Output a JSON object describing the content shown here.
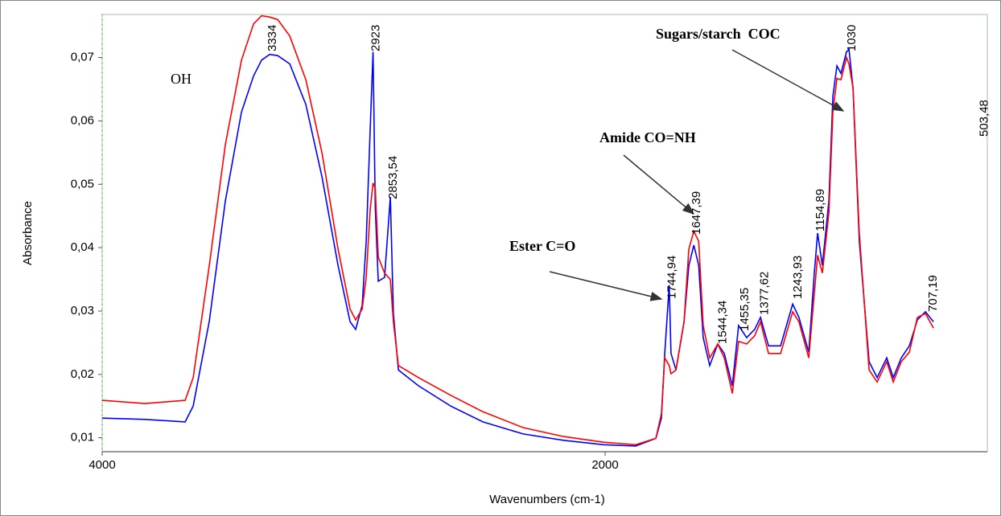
{
  "chart_data": {
    "type": "line",
    "x_label": "Wavenumbers (cm-1)",
    "y_label": "Absorbance",
    "xlim": [
      4000,
      480
    ],
    "ylim": [
      0.0078,
      0.0768
    ],
    "xticks": [
      4000,
      2000
    ],
    "yticks": [
      {
        "value": 0.01,
        "label": "0,01"
      },
      {
        "value": 0.02,
        "label": "0,02"
      },
      {
        "value": 0.03,
        "label": "0,03"
      },
      {
        "value": 0.04,
        "label": "0,04"
      },
      {
        "value": 0.05,
        "label": "0,05"
      },
      {
        "value": 0.06,
        "label": "0,06"
      },
      {
        "value": 0.07,
        "label": "0,07"
      }
    ],
    "x": [
      4000,
      3830,
      3670,
      3638,
      3574,
      3510,
      3446,
      3398,
      3366,
      3334,
      3302,
      3254,
      3190,
      3126,
      3062,
      3014,
      2992,
      2966,
      2950,
      2934,
      2923,
      2914,
      2902,
      2877,
      2854,
      2842,
      2822,
      2742,
      2614,
      2486,
      2326,
      2166,
      2006,
      1878,
      1798,
      1776,
      1763,
      1745,
      1738,
      1718,
      1686,
      1667,
      1647,
      1628,
      1610,
      1584,
      1552,
      1526,
      1494,
      1469,
      1437,
      1405,
      1382,
      1350,
      1302,
      1254,
      1229,
      1190,
      1168,
      1155,
      1136,
      1110,
      1094,
      1078,
      1062,
      1040,
      1030,
      1014,
      989,
      950,
      918,
      880,
      854,
      822,
      790,
      758,
      726,
      694
    ],
    "series": [
      {
        "color": "#0000ff",
        "values": [
          0.0131,
          0.0129,
          0.0125,
          0.015,
          0.0284,
          0.0474,
          0.0614,
          0.0671,
          0.0696,
          0.0705,
          0.0703,
          0.069,
          0.0626,
          0.0512,
          0.0372,
          0.0283,
          0.0271,
          0.0309,
          0.041,
          0.0588,
          0.0709,
          0.0461,
          0.0347,
          0.0353,
          0.048,
          0.0296,
          0.0207,
          0.0182,
          0.015,
          0.0125,
          0.0106,
          0.0096,
          0.0089,
          0.0087,
          0.0099,
          0.0131,
          0.0233,
          0.0341,
          0.0233,
          0.0207,
          0.0283,
          0.0372,
          0.0404,
          0.0372,
          0.0258,
          0.0214,
          0.0248,
          0.0233,
          0.0182,
          0.0277,
          0.0258,
          0.0271,
          0.029,
          0.0245,
          0.0245,
          0.0311,
          0.029,
          0.0235,
          0.036,
          0.0423,
          0.0372,
          0.0474,
          0.0639,
          0.0687,
          0.0675,
          0.0709,
          0.0713,
          0.0652,
          0.041,
          0.022,
          0.0195,
          0.0226,
          0.0195,
          0.0226,
          0.0245,
          0.0286,
          0.0299,
          0.0283
        ]
      },
      {
        "color": "#ff0000",
        "values": [
          0.0159,
          0.0154,
          0.0159,
          0.0195,
          0.0372,
          0.0563,
          0.0696,
          0.0753,
          0.0766,
          0.0764,
          0.076,
          0.0734,
          0.0665,
          0.055,
          0.0398,
          0.0303,
          0.0286,
          0.0303,
          0.0353,
          0.0461,
          0.0502,
          0.0493,
          0.0385,
          0.036,
          0.035,
          0.0283,
          0.0214,
          0.0195,
          0.0167,
          0.0141,
          0.0116,
          0.0102,
          0.0093,
          0.0089,
          0.0099,
          0.0138,
          0.0226,
          0.0214,
          0.0201,
          0.0207,
          0.0283,
          0.0398,
          0.0426,
          0.041,
          0.0277,
          0.0226,
          0.0248,
          0.0226,
          0.017,
          0.0252,
          0.0248,
          0.0261,
          0.0283,
          0.0233,
          0.0233,
          0.0299,
          0.0283,
          0.0226,
          0.0328,
          0.0388,
          0.036,
          0.0455,
          0.0614,
          0.0667,
          0.0665,
          0.07,
          0.069,
          0.0652,
          0.0423,
          0.0207,
          0.0188,
          0.022,
          0.0188,
          0.022,
          0.0235,
          0.029,
          0.0296,
          0.0273
        ]
      }
    ],
    "peak_labels": [
      "3334",
      "2923",
      "2853,54",
      "1744,94",
      "1647,39",
      "1544,34",
      "1455,35",
      "1377,62",
      "1243,93",
      "1154,89",
      "1030",
      "707,19",
      "503,48"
    ],
    "annotations": [
      "OH",
      "Ester C=O",
      "Amide CO=NH",
      "Sugars/starch  COC"
    ]
  }
}
